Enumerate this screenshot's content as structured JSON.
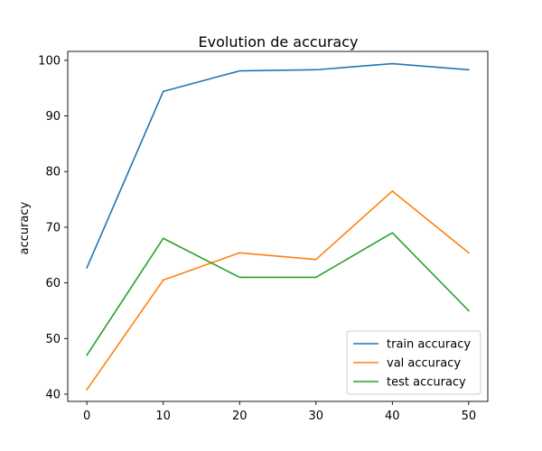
{
  "chart_data": {
    "type": "line",
    "title": "Evolution de accuracy",
    "xlabel": "",
    "ylabel": "accuracy",
    "x": [
      0,
      10,
      20,
      30,
      40,
      50
    ],
    "xlim": [
      -2.5,
      52.5
    ],
    "ylim": [
      38.7,
      101.6
    ],
    "xticks": [
      0,
      10,
      20,
      30,
      40,
      50
    ],
    "yticks": [
      40,
      50,
      60,
      70,
      80,
      90,
      100
    ],
    "grid": false,
    "legend_position": "lower-right",
    "series": [
      {
        "name": "train accuracy",
        "color": "#1f77b4",
        "values": [
          62.7,
          94.4,
          98.1,
          98.3,
          99.4,
          98.3
        ]
      },
      {
        "name": "val accuracy",
        "color": "#ff7f0e",
        "values": [
          40.8,
          60.5,
          65.4,
          64.2,
          76.5,
          65.4
        ]
      },
      {
        "name": "test accuracy",
        "color": "#2ca02c",
        "values": [
          47.0,
          68.0,
          61.0,
          61.0,
          69.0,
          55.0
        ]
      }
    ]
  }
}
